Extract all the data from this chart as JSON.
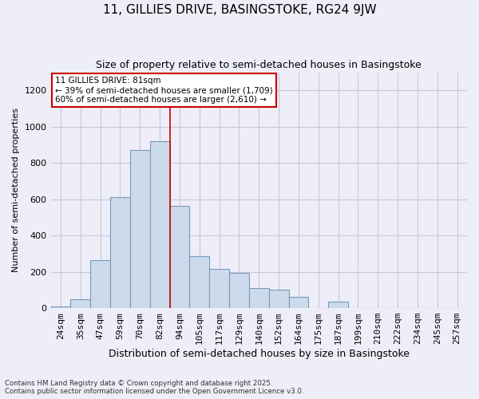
{
  "title1": "11, GILLIES DRIVE, BASINGSTOKE, RG24 9JW",
  "title2": "Size of property relative to semi-detached houses in Basingstoke",
  "xlabel": "Distribution of semi-detached houses by size in Basingstoke",
  "ylabel": "Number of semi-detached properties",
  "categories": [
    "24sqm",
    "35sqm",
    "47sqm",
    "59sqm",
    "70sqm",
    "82sqm",
    "94sqm",
    "105sqm",
    "117sqm",
    "129sqm",
    "140sqm",
    "152sqm",
    "164sqm",
    "175sqm",
    "187sqm",
    "199sqm",
    "210sqm",
    "222sqm",
    "234sqm",
    "245sqm",
    "257sqm"
  ],
  "values": [
    10,
    50,
    265,
    610,
    870,
    920,
    565,
    285,
    215,
    195,
    110,
    100,
    60,
    0,
    35,
    0,
    0,
    0,
    0,
    0,
    0
  ],
  "bar_color": "#ccdaeb",
  "bar_edge_color": "#7799bb",
  "grid_color": "#c8c8d8",
  "background_color": "#eeeef8",
  "vline_x_idx": 5,
  "vline_color": "#cc0000",
  "annotation_title": "11 GILLIES DRIVE: 81sqm",
  "annotation_line1": "← 39% of semi-detached houses are smaller (1,709)",
  "annotation_line2": "60% of semi-detached houses are larger (2,610) →",
  "annotation_box_edgecolor": "#cc0000",
  "ylim": [
    0,
    1300
  ],
  "yticks": [
    0,
    200,
    400,
    600,
    800,
    1000,
    1200
  ],
  "footnote1": "Contains HM Land Registry data © Crown copyright and database right 2025.",
  "footnote2": "Contains public sector information licensed under the Open Government Licence v3.0."
}
